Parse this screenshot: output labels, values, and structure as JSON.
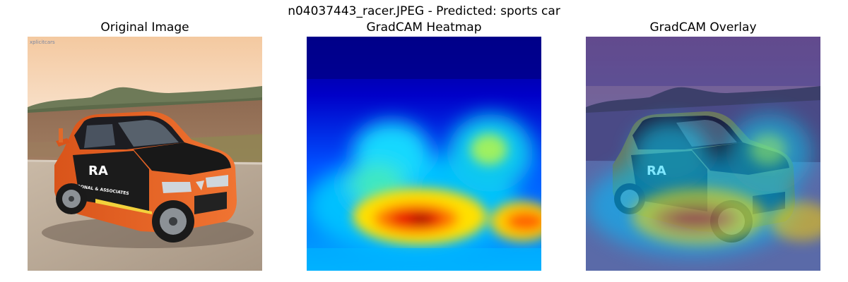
{
  "figure": {
    "title": "n04037443_racer.JPEG - Predicted: sports car"
  },
  "panels": [
    {
      "title": "Original Image",
      "watermark": "xplicitcars"
    },
    {
      "title": "GradCAM Heatmap"
    },
    {
      "title": "GradCAM Overlay"
    }
  ],
  "car_decals": {
    "logo": "RA",
    "sponsor": "RONAL & ASSOCIATES"
  },
  "colors": {
    "sky": "#f6e6d6",
    "car_body": "#e8611e",
    "car_dark": "#1a1a1a",
    "heatmap_low": "#00008f",
    "heatmap_high": "#7f0000",
    "overlay_tint": "#2a2fb0"
  }
}
